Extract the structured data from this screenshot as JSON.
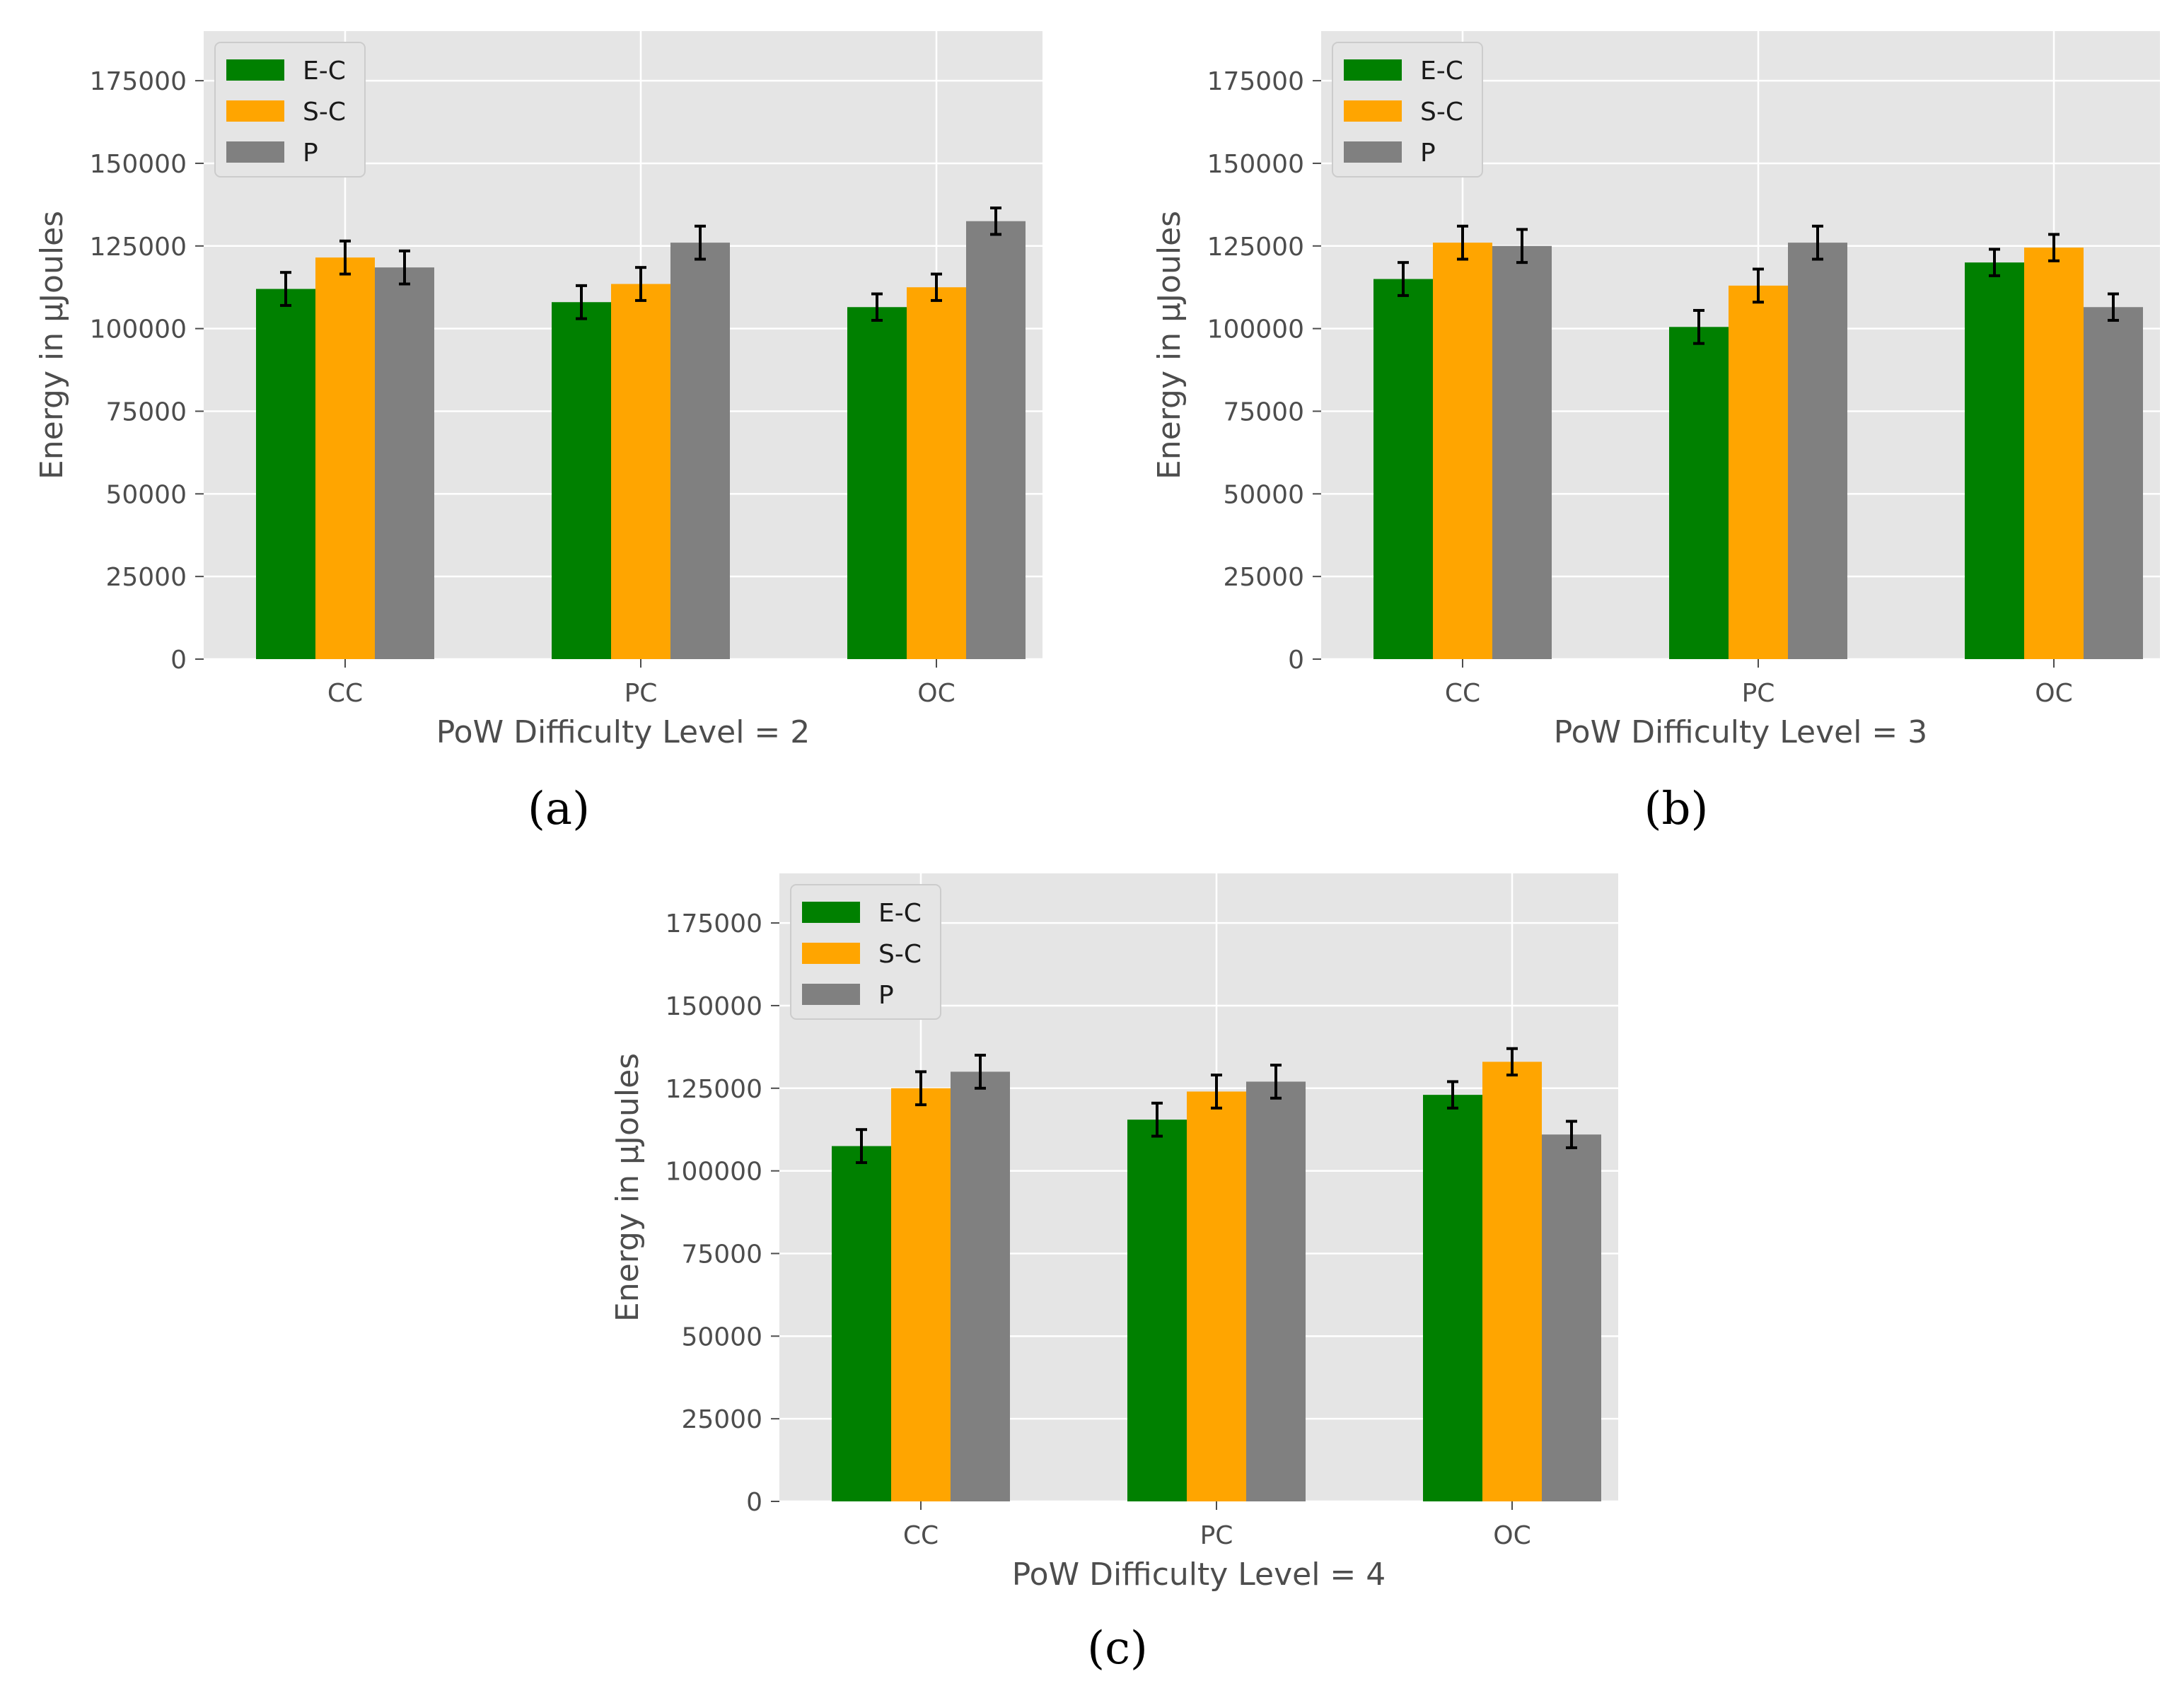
{
  "colors": {
    "panel_bg": "#e5e5e5",
    "grid": "#ffffff",
    "errorbar": "#000000",
    "legend_bg": "#e5e5e5",
    "legend_border": "#cccccc"
  },
  "chart_data": [
    {
      "type": "bar",
      "panel_label": "(a)",
      "categories": [
        "CC",
        "PC",
        "OC"
      ],
      "series": [
        {
          "name": "E-C",
          "color": "#008000",
          "values": [
            112000,
            108000,
            106500
          ],
          "errors": [
            5000,
            5000,
            4000
          ]
        },
        {
          "name": "S-C",
          "color": "#ffa500",
          "values": [
            121500,
            113500,
            112500
          ],
          "errors": [
            5000,
            5000,
            4000
          ]
        },
        {
          "name": "P",
          "color": "#808080",
          "values": [
            118500,
            126000,
            132500
          ],
          "errors": [
            5000,
            5000,
            4000
          ]
        }
      ],
      "xlabel": "PoW Difficulty Level = 2",
      "ylabel": "Energy in μJoules",
      "yticks": [
        0,
        25000,
        50000,
        75000,
        100000,
        125000,
        150000,
        175000
      ],
      "ylim": [
        0,
        190000
      ],
      "grid": true,
      "legend_position": "top-left"
    },
    {
      "type": "bar",
      "panel_label": "(b)",
      "categories": [
        "CC",
        "PC",
        "OC"
      ],
      "series": [
        {
          "name": "E-C",
          "color": "#008000",
          "values": [
            115000,
            100500,
            120000
          ],
          "errors": [
            5000,
            5000,
            4000
          ]
        },
        {
          "name": "S-C",
          "color": "#ffa500",
          "values": [
            126000,
            113000,
            124500
          ],
          "errors": [
            5000,
            5000,
            4000
          ]
        },
        {
          "name": "P",
          "color": "#808080",
          "values": [
            125000,
            126000,
            106500
          ],
          "errors": [
            5000,
            5000,
            4000
          ]
        }
      ],
      "xlabel": "PoW Difficulty Level = 3",
      "ylabel": "Energy in μJoules",
      "yticks": [
        0,
        25000,
        50000,
        75000,
        100000,
        125000,
        150000,
        175000
      ],
      "ylim": [
        0,
        190000
      ],
      "grid": true,
      "legend_position": "top-left"
    },
    {
      "type": "bar",
      "panel_label": "(c)",
      "categories": [
        "CC",
        "PC",
        "OC"
      ],
      "series": [
        {
          "name": "E-C",
          "color": "#008000",
          "values": [
            107500,
            115500,
            123000
          ],
          "errors": [
            5000,
            5000,
            4000
          ]
        },
        {
          "name": "S-C",
          "color": "#ffa500",
          "values": [
            125000,
            124000,
            133000
          ],
          "errors": [
            5000,
            5000,
            4000
          ]
        },
        {
          "name": "P",
          "color": "#808080",
          "values": [
            130000,
            127000,
            111000
          ],
          "errors": [
            5000,
            5000,
            4000
          ]
        }
      ],
      "xlabel": "PoW Difficulty Level = 4",
      "ylabel": "Energy in μJoules",
      "yticks": [
        0,
        25000,
        50000,
        75000,
        100000,
        125000,
        150000,
        175000
      ],
      "ylim": [
        0,
        190000
      ],
      "grid": true,
      "legend_position": "top-left"
    }
  ]
}
